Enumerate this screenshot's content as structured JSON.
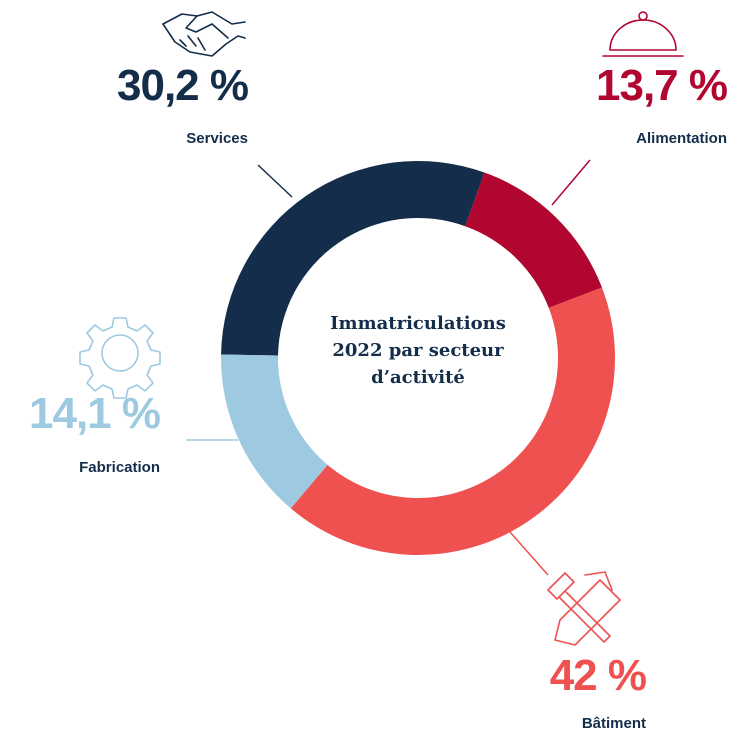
{
  "chart_data": {
    "type": "donut",
    "title": "Immatriculations 2022 par secteur d’activité",
    "categories": [
      "Services",
      "Alimentation",
      "Bâtiment",
      "Fabrication"
    ],
    "values": [
      30.2,
      13.7,
      42,
      14.1
    ],
    "value_labels": [
      "30,2 %",
      "13,7 %",
      "42 %",
      "14,1 %"
    ],
    "colors": [
      "#132d4a",
      "#b0062f",
      "#ef5050",
      "#9ecae1"
    ]
  }
}
